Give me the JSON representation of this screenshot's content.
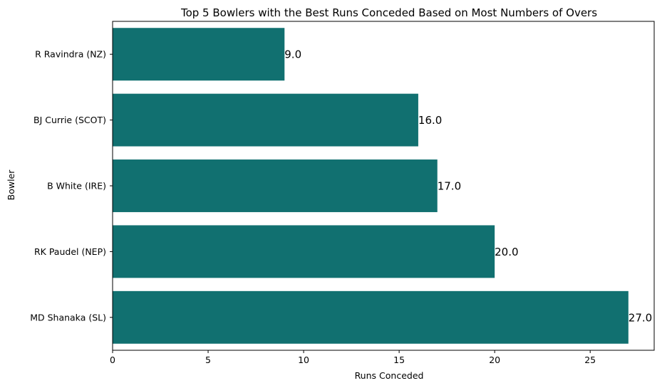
{
  "chart_data": {
    "type": "bar",
    "orientation": "horizontal",
    "title": "Top 5 Bowlers with the Best Runs Conceded Based on Most Numbers of Overs",
    "xlabel": "Runs Conceded",
    "ylabel": "Bowler",
    "categories": [
      "R Ravindra (NZ)",
      "BJ Currie (SCOT)",
      "B White (IRE)",
      "RK Paudel (NEP)",
      "MD Shanaka (SL)"
    ],
    "values": [
      9.0,
      16.0,
      17.0,
      20.0,
      27.0
    ],
    "value_labels": [
      "9.0",
      "16.0",
      "17.0",
      "20.0",
      "27.0"
    ],
    "xlim": [
      0,
      28.35
    ],
    "xticks": [
      0,
      5,
      10,
      15,
      20,
      25
    ],
    "xtick_labels": [
      "0",
      "5",
      "10",
      "15",
      "20",
      "25"
    ],
    "grid": false,
    "bar_color": "#117070"
  }
}
